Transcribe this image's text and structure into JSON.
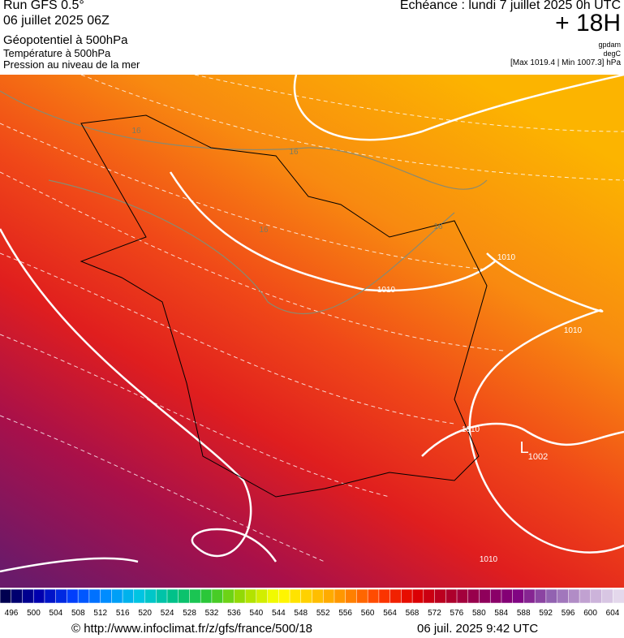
{
  "header": {
    "run": "Run GFS 0.5°",
    "run_date": "06 juillet 2025 06Z",
    "field1": "Géopotentiel à 500hPa",
    "field2": "Température à 500hPa",
    "field3": "Pression au niveau de la mer",
    "valid": "Echéance : lundi 7 juillet 2025 0h UTC",
    "lead": "+ 18H",
    "unit1": "gpdam",
    "unit2": "degC",
    "range": "[Max 1019.4 | Min 1007.3] hPa"
  },
  "map": {
    "contour_labels": [
      "16",
      "16",
      "16",
      "16",
      "1010",
      "1010",
      "1010",
      "1010",
      "1010",
      "L",
      "1002"
    ]
  },
  "colorbar": {
    "labels": [
      496,
      500,
      504,
      508,
      512,
      516,
      520,
      524,
      528,
      532,
      536,
      540,
      544,
      548,
      552,
      556,
      560,
      564,
      568,
      572,
      576,
      580,
      584,
      588,
      592,
      596,
      600,
      604
    ],
    "colors": [
      "#000050",
      "#0000b0",
      "#0040ff",
      "#0090ff",
      "#00c8e0",
      "#00c080",
      "#30c830",
      "#a0dc00",
      "#ffff00",
      "#ffc800",
      "#ff8c00",
      "#ff3c00",
      "#e00000",
      "#b00028",
      "#900058",
      "#800080",
      "#9060b0",
      "#c0a0d0",
      "#e4d8ec"
    ]
  },
  "footer": {
    "source": "© http://www.infoclimat.fr/z/gfs/france/500/18",
    "generated": "06 juil. 2025  9:42 UTC"
  }
}
